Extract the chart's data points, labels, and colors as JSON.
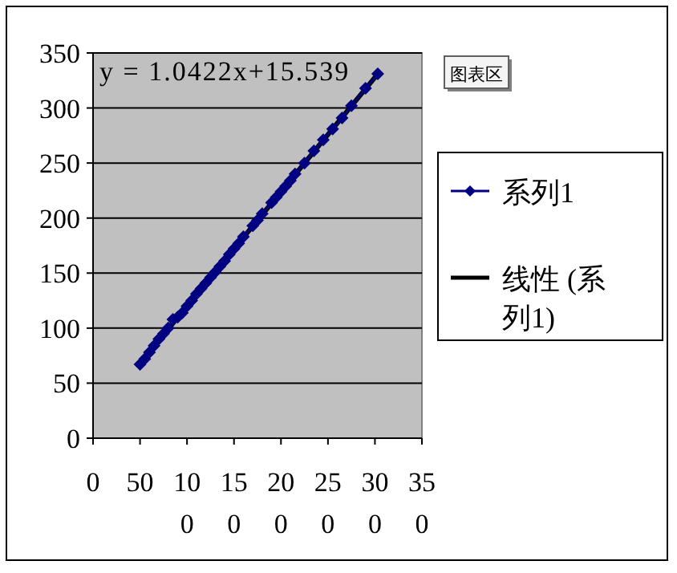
{
  "chart_data": {
    "type": "line",
    "xlim": [
      0,
      350
    ],
    "xticks": [
      0,
      50,
      100,
      150,
      200,
      250,
      300,
      350
    ],
    "ylim": [
      0,
      350
    ],
    "yticks": [
      0,
      50,
      100,
      150,
      200,
      250,
      300,
      350
    ],
    "grid": "y",
    "legend": "right",
    "marker": "diamond",
    "annotations": [
      "y = 1.0422x+15.539",
      "图表区"
    ],
    "series": [
      {
        "name": "系列1",
        "color": "#000080",
        "x": [
          50,
          55,
          60,
          65,
          70,
          75,
          80,
          85,
          90,
          95,
          100,
          105,
          110,
          115,
          120,
          125,
          130,
          135,
          140,
          145,
          150,
          155,
          160,
          170,
          175,
          180,
          190,
          195,
          200,
          205,
          210,
          215,
          225,
          235,
          245,
          255,
          265,
          275,
          290,
          303
        ],
        "values": [
          67,
          72,
          78,
          84,
          90,
          95,
          100,
          108,
          110,
          114,
          120,
          125,
          131,
          136,
          141,
          146,
          151,
          156,
          161,
          167,
          172,
          177,
          183,
          193,
          198,
          204,
          214,
          219,
          224,
          229,
          234,
          240,
          250,
          261,
          271,
          281,
          291,
          302,
          318,
          331
        ]
      },
      {
        "name": "线性 (系列1)",
        "color": "#000000",
        "marker": "none",
        "x": [
          50,
          303
        ],
        "values": [
          68,
          331
        ]
      }
    ]
  }
}
